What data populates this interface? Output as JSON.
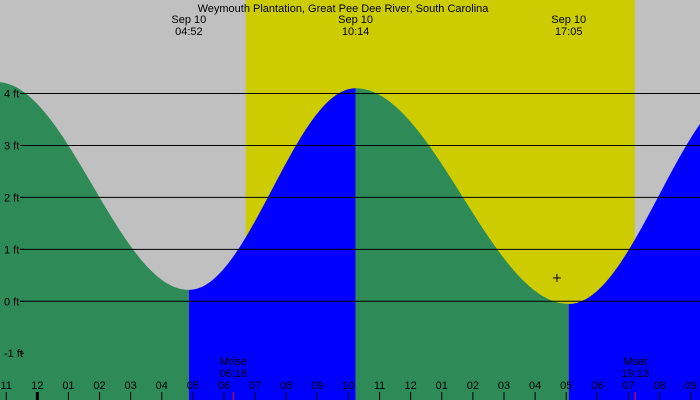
{
  "chart_data": {
    "type": "area",
    "title": "Weymouth Plantation, Great Pee Dee River, South Carolina",
    "y_unit": "ft",
    "ylim": [
      -1.9,
      5.8
    ],
    "xlim": [
      -1.2,
      21.3
    ],
    "y_ticks": [
      {
        "value": 4,
        "label": "4 ft"
      },
      {
        "value": 3,
        "label": "3 ft"
      },
      {
        "value": 2,
        "label": "2 ft"
      },
      {
        "value": 1,
        "label": "1 ft"
      },
      {
        "value": 0,
        "label": "0 ft"
      },
      {
        "value": -1,
        "label": "-1 ft"
      }
    ],
    "x_ticks": [
      {
        "value": -1,
        "label": "11"
      },
      {
        "value": 0,
        "label": "12"
      },
      {
        "value": 1,
        "label": "01"
      },
      {
        "value": 2,
        "label": "02"
      },
      {
        "value": 3,
        "label": "03"
      },
      {
        "value": 4,
        "label": "04"
      },
      {
        "value": 5,
        "label": "05"
      },
      {
        "value": 6,
        "label": "06"
      },
      {
        "value": 7,
        "label": "07"
      },
      {
        "value": 8,
        "label": "08"
      },
      {
        "value": 9,
        "label": "09"
      },
      {
        "value": 10,
        "label": "10"
      },
      {
        "value": 11,
        "label": "11"
      },
      {
        "value": 12,
        "label": "12"
      },
      {
        "value": 13,
        "label": "01"
      },
      {
        "value": 14,
        "label": "02"
      },
      {
        "value": 15,
        "label": "03"
      },
      {
        "value": 16,
        "label": "04"
      },
      {
        "value": 17,
        "label": "05"
      },
      {
        "value": 18,
        "label": "06"
      },
      {
        "value": 19,
        "label": "07"
      },
      {
        "value": 20,
        "label": "08"
      },
      {
        "value": 21,
        "label": "09"
      }
    ],
    "top_labels": [
      {
        "x": 4.87,
        "date": "Sep 10",
        "time": "04:52"
      },
      {
        "x": 10.23,
        "date": "Sep 10",
        "time": "10:14"
      },
      {
        "x": 17.08,
        "date": "Sep 10",
        "time": "17:05"
      }
    ],
    "moon_labels": [
      {
        "x": 6.3,
        "name": "Mrise",
        "time": "06:18"
      },
      {
        "x": 19.22,
        "name": "Mset",
        "time": "19:13"
      }
    ],
    "daylight": [
      6.7,
      19.2
    ],
    "extrema": [
      {
        "x": -1.3,
        "y": 4.22,
        "type": "high"
      },
      {
        "x": 4.87,
        "y": 0.22,
        "type": "low"
      },
      {
        "x": 10.23,
        "y": 4.1,
        "type": "high"
      },
      {
        "x": 17.08,
        "y": -0.05,
        "type": "low"
      },
      {
        "x": 22.9,
        "y": 4.15,
        "type": "high"
      }
    ],
    "current": {
      "x": 16.7,
      "y": 0.45
    },
    "colors": {
      "night": "#c0c0c0",
      "day": "#cccc00",
      "falling": "#2e8b57",
      "rising": "#0000ff",
      "tick_red": "#ff0000"
    }
  }
}
